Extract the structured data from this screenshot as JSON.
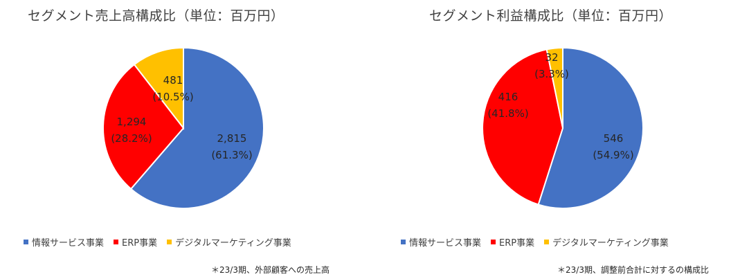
{
  "colors": {
    "info_services": "#4472C4",
    "erp": "#FF0000",
    "digital_marketing": "#FFC000"
  },
  "chart_data": [
    {
      "type": "pie",
      "title": "セグメント売上高構成比（単位：百万円）",
      "slices": [
        {
          "name": "情報サービス事業",
          "value": 2815,
          "label": "2,815",
          "percent_label": "(61.3%)",
          "color": "#4472C4"
        },
        {
          "name": "ERP事業",
          "value": 1294,
          "label": "1,294",
          "percent_label": "(28.2%)",
          "color": "#FF0000"
        },
        {
          "name": "デジタルマーケティング事業",
          "value": 481,
          "label": "481",
          "percent_label": "(10.5%)",
          "color": "#FFC000"
        }
      ],
      "legend": [
        "情報サービス事業",
        "ERP事業",
        "デジタルマーケティング事業"
      ],
      "legend_position": "bottom",
      "footnote": "＊23/3期、外部顧客への売上高"
    },
    {
      "type": "pie",
      "title": "セグメント利益構成比（単位：百万円）",
      "slices": [
        {
          "name": "情報サービス事業",
          "value": 546,
          "label": "546",
          "percent_label": "(54.9%)",
          "color": "#4472C4"
        },
        {
          "name": "ERP事業",
          "value": 416,
          "label": "416",
          "percent_label": "(41.8%)",
          "color": "#FF0000"
        },
        {
          "name": "デジタルマーケティング事業",
          "value": 32,
          "label": "32",
          "percent_label": "(3.3%)",
          "color": "#FFC000"
        }
      ],
      "legend": [
        "情報サービス事業",
        "ERP事業",
        "デジタルマーケティング事業"
      ],
      "legend_position": "bottom",
      "footnote": "＊23/3期、調整前合計に対するの構成比"
    }
  ]
}
